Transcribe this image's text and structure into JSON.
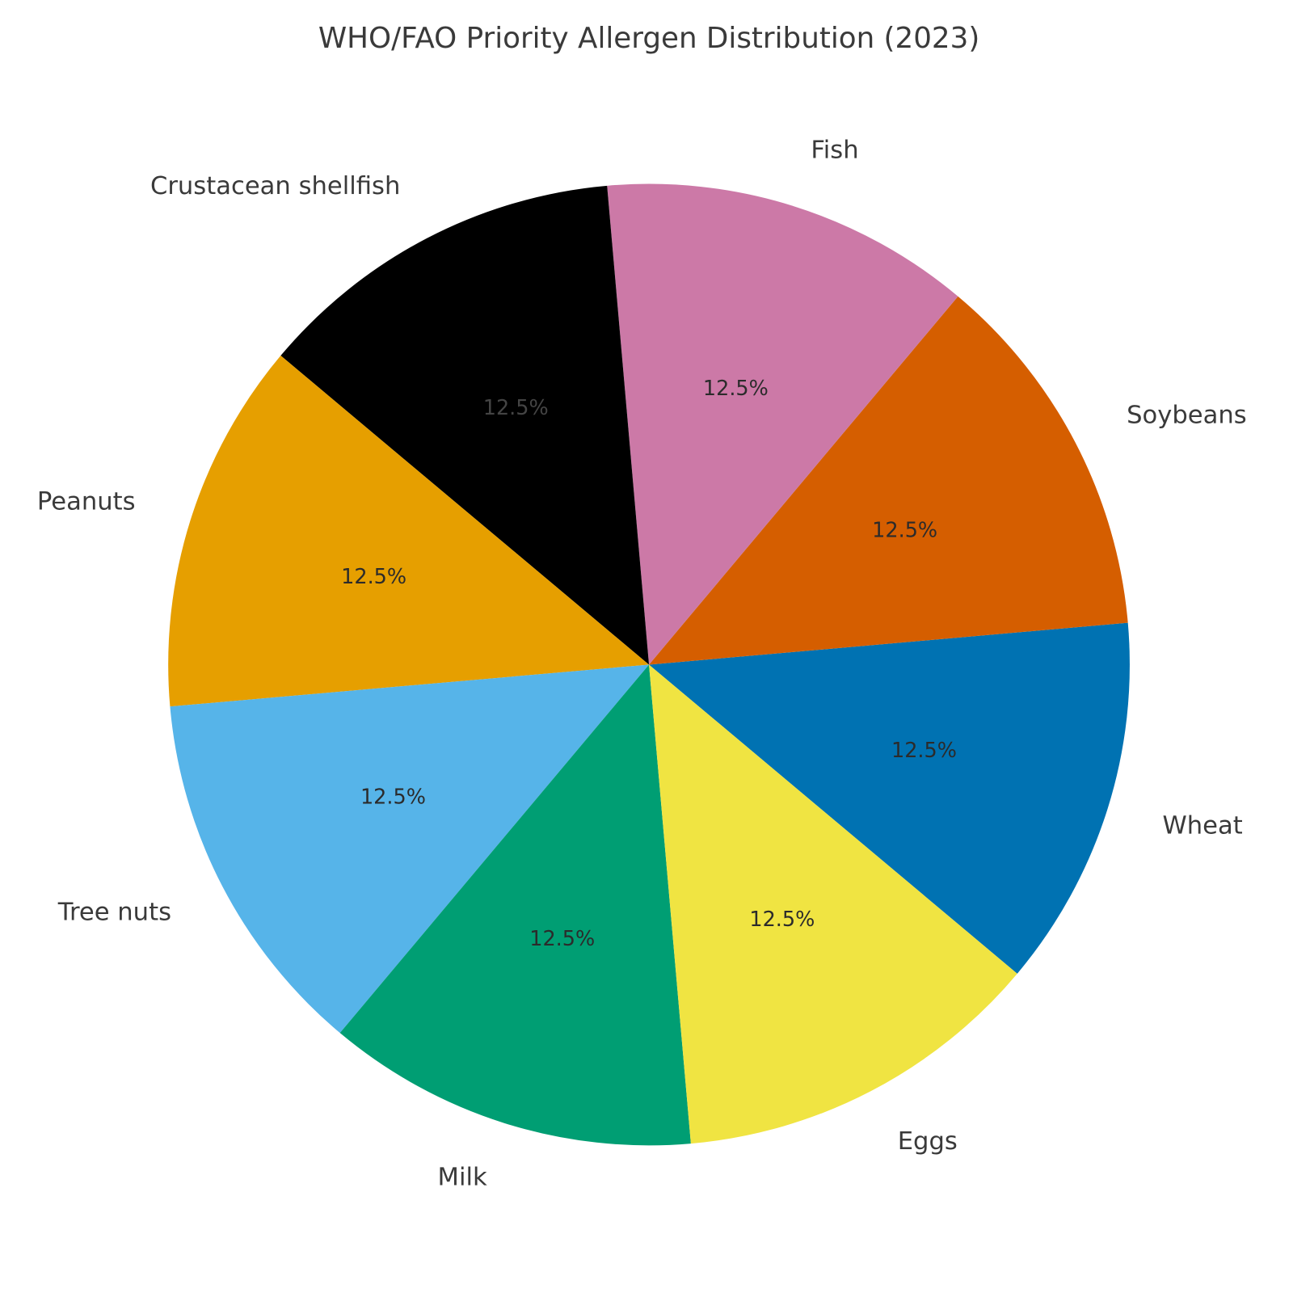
{
  "chart_data": {
    "type": "pie",
    "title": "WHO/FAO Priority Allergen Distribution (2023)",
    "categories": [
      "Wheat",
      "Soybeans",
      "Fish",
      "Crustacean shellfish",
      "Peanuts",
      "Tree nuts",
      "Milk",
      "Eggs"
    ],
    "values": [
      12.5,
      12.5,
      12.5,
      12.5,
      12.5,
      12.5,
      12.5,
      12.5
    ],
    "value_labels": [
      "12.5%",
      "12.5%",
      "12.5%",
      "12.5%",
      "12.5%",
      "12.5%",
      "12.5%",
      "12.5%"
    ],
    "colors": [
      "#0072B2",
      "#D55E00",
      "#CC79A7",
      "#000000",
      "#E69F00",
      "#56B4E9",
      "#009E73",
      "#F0E442"
    ]
  }
}
